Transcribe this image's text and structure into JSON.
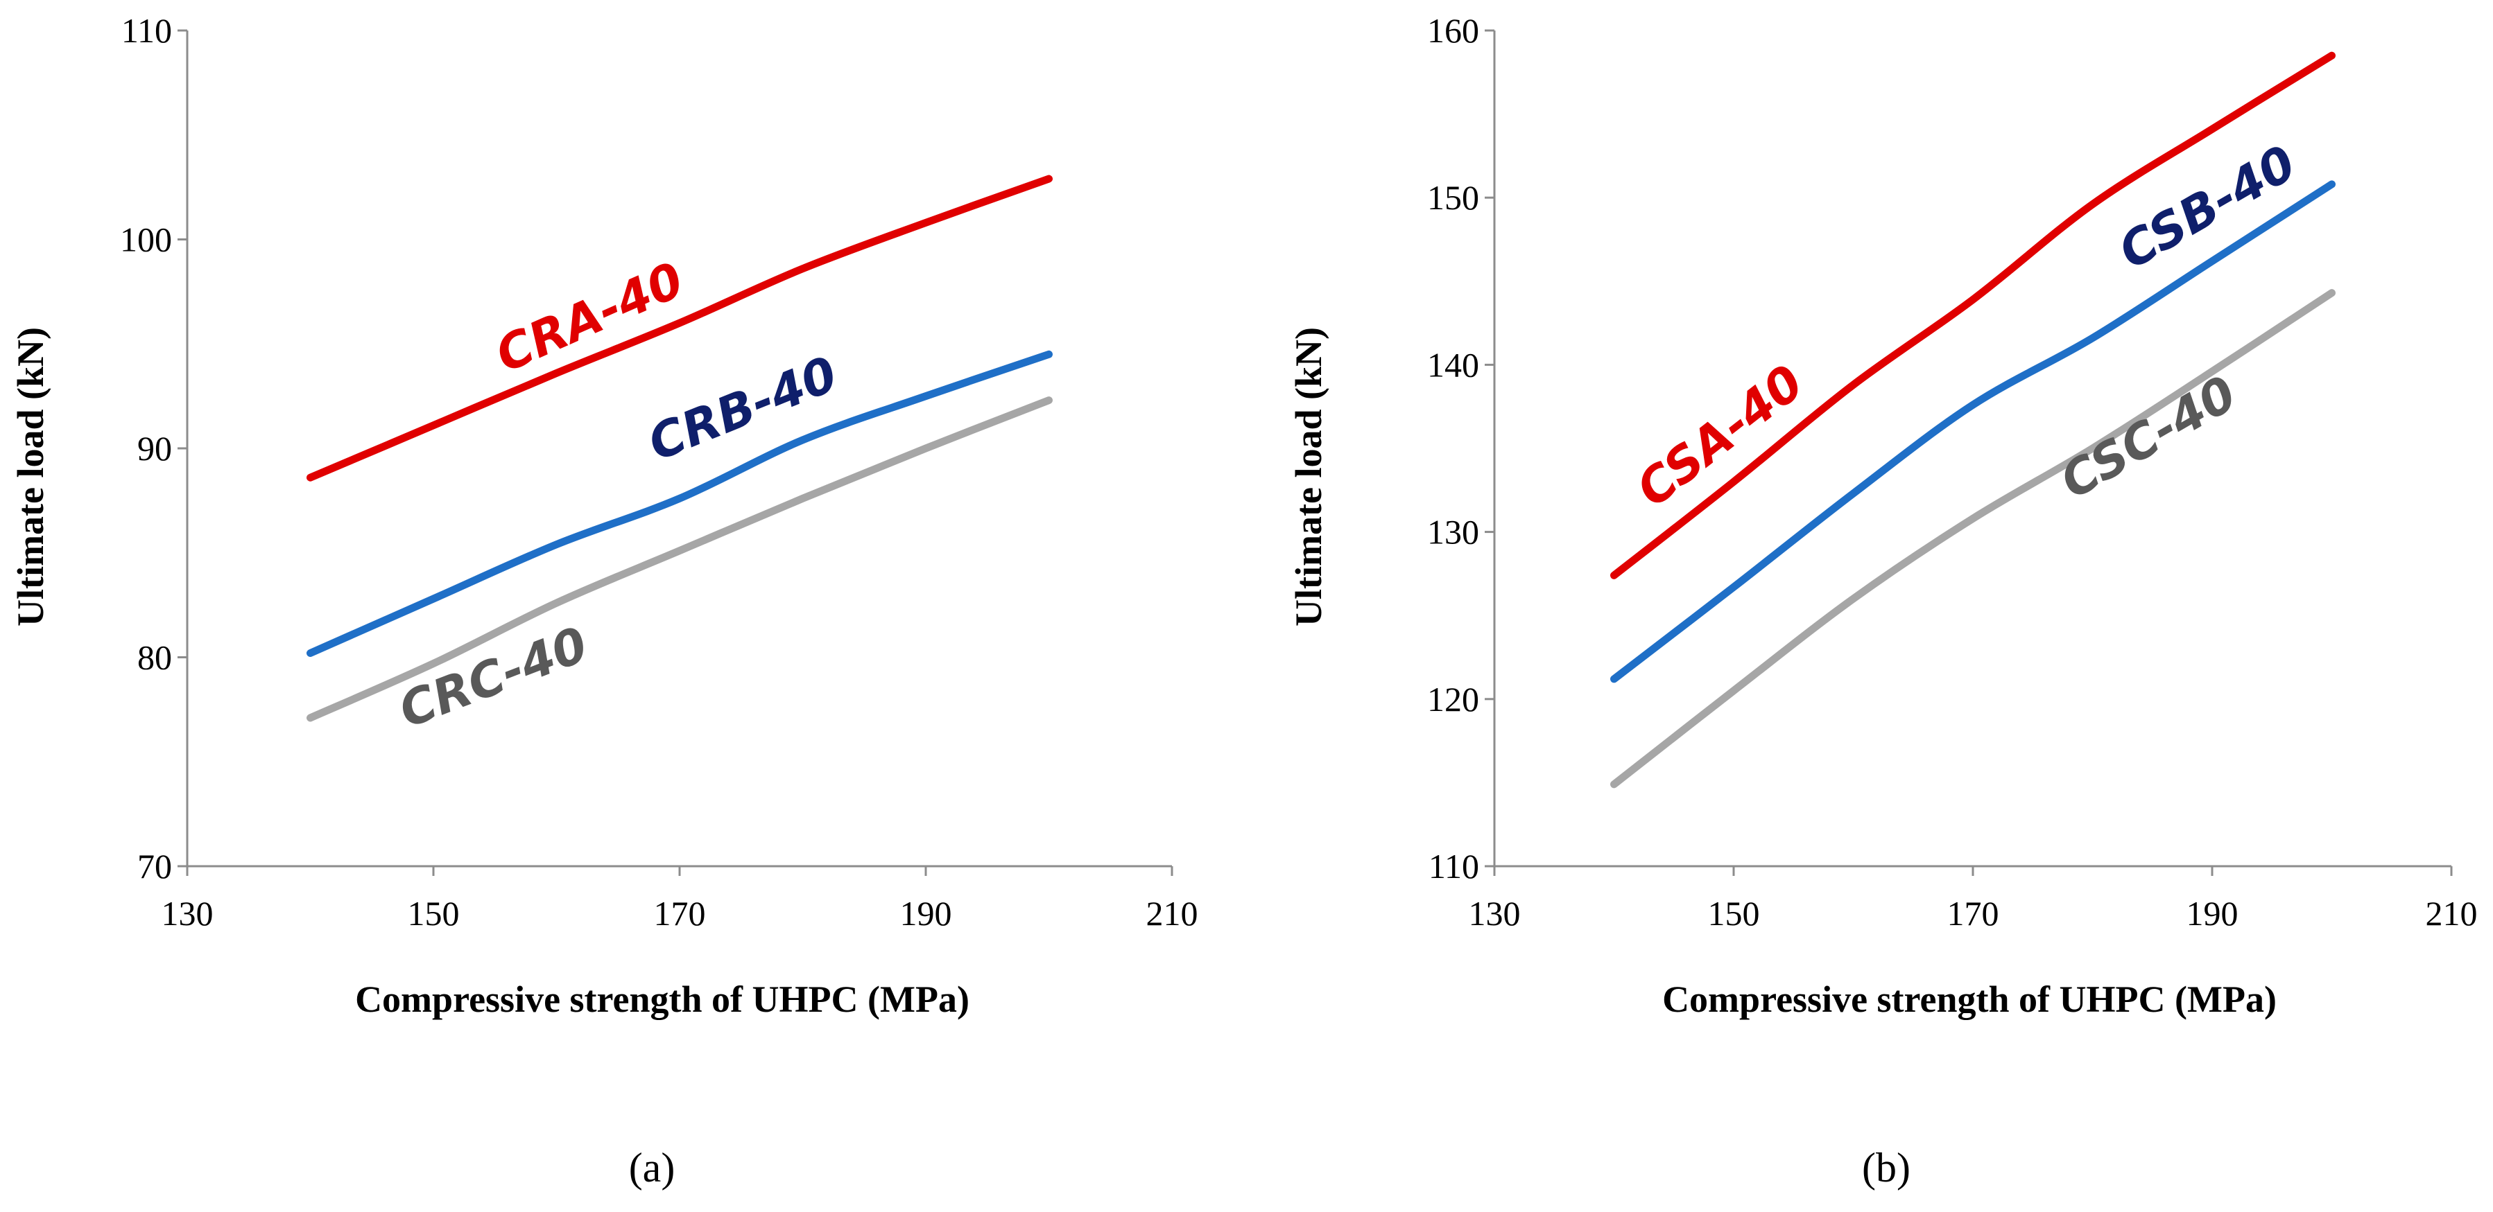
{
  "chart_data": [
    {
      "type": "line",
      "panel_label": "(a)",
      "xlabel": "Compressive strength of UHPC (MPa)",
      "ylabel": "Ultimate load (kN)",
      "xlim": [
        130,
        210
      ],
      "ylim": [
        70,
        110
      ],
      "xticks": [
        130,
        150,
        170,
        190,
        210
      ],
      "yticks": [
        70,
        80,
        90,
        100,
        110
      ],
      "grid": false,
      "legend": "inline labels",
      "series": [
        {
          "name": "CRA-40",
          "color": "#e00000",
          "label_color": "#e00000",
          "x": [
            140,
            150,
            160,
            170,
            180,
            190,
            200
          ],
          "y": [
            88.6,
            91.1,
            93.6,
            96.0,
            98.6,
            100.8,
            102.9
          ]
        },
        {
          "name": "CRB-40",
          "color": "#1f6fc7",
          "label_color": "#0f1f6b",
          "x": [
            140,
            150,
            160,
            170,
            180,
            190,
            200
          ],
          "y": [
            80.2,
            82.8,
            85.4,
            87.6,
            90.4,
            92.5,
            94.5
          ]
        },
        {
          "name": "CRC-40",
          "color": "#a6a6a6",
          "label_color": "#595959",
          "x": [
            140,
            150,
            160,
            170,
            180,
            190,
            200
          ],
          "y": [
            77.1,
            79.7,
            82.6,
            85.1,
            87.6,
            90.0,
            92.3
          ]
        }
      ]
    },
    {
      "type": "line",
      "panel_label": "(b)",
      "xlabel": "Compressive strength of UHPC (MPa)",
      "ylabel": "Ultimate load (kN)",
      "xlim": [
        130,
        210
      ],
      "ylim": [
        110,
        160
      ],
      "xticks": [
        130,
        150,
        170,
        190,
        210
      ],
      "yticks": [
        110,
        120,
        130,
        140,
        150,
        160
      ],
      "grid": false,
      "legend": "inline labels",
      "series": [
        {
          "name": "CSA-40",
          "color": "#e00000",
          "label_color": "#e00000",
          "x": [
            140,
            150,
            160,
            170,
            180,
            190,
            200
          ],
          "y": [
            127.4,
            133.0,
            138.8,
            143.9,
            149.6,
            154.1,
            158.5
          ]
        },
        {
          "name": "CSB-40",
          "color": "#1f6fc7",
          "label_color": "#0f1f6b",
          "x": [
            140,
            150,
            160,
            170,
            180,
            190,
            200
          ],
          "y": [
            121.2,
            126.7,
            132.3,
            137.6,
            141.6,
            146.2,
            150.8
          ]
        },
        {
          "name": "CSC-40",
          "color": "#a6a6a6",
          "label_color": "#595959",
          "x": [
            140,
            150,
            160,
            170,
            180,
            190,
            200
          ],
          "y": [
            114.9,
            120.5,
            126.0,
            130.8,
            135.0,
            139.6,
            144.3
          ]
        }
      ]
    }
  ]
}
